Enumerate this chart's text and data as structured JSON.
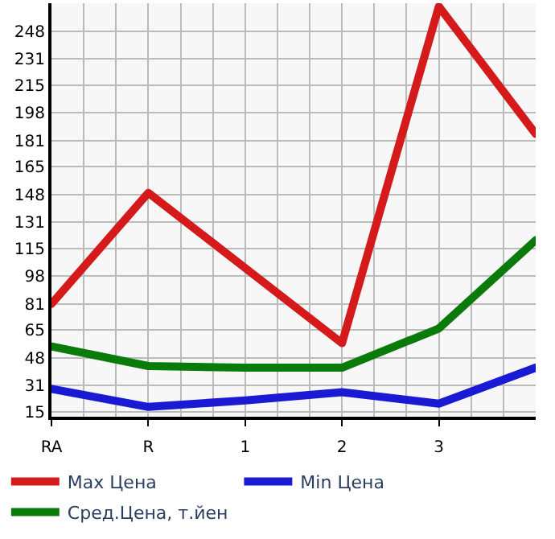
{
  "chart_data": {
    "type": "line",
    "categories": [
      "RA",
      "R",
      "1",
      "2",
      "3",
      null
    ],
    "series": [
      {
        "name": "Max Цена",
        "color": "#d41a1a",
        "values": [
          81,
          149,
          103,
          57,
          263,
          185
        ]
      },
      {
        "name": "Min Цена",
        "color": "#1a1ad4",
        "values": [
          29,
          18,
          22,
          27,
          20,
          42
        ]
      },
      {
        "name": "Сред.Цена, т.йен",
        "color": "#0a7a0a",
        "values": [
          55,
          43,
          42,
          42,
          66,
          120
        ]
      }
    ],
    "ylim": [
      12,
      265
    ],
    "yticks": [
      15,
      31,
      48,
      65,
      81,
      98,
      115,
      131,
      148,
      165,
      181,
      198,
      215,
      231,
      248
    ],
    "grid": true,
    "legend": "bottom",
    "marker": "none",
    "line_style": "solid"
  }
}
